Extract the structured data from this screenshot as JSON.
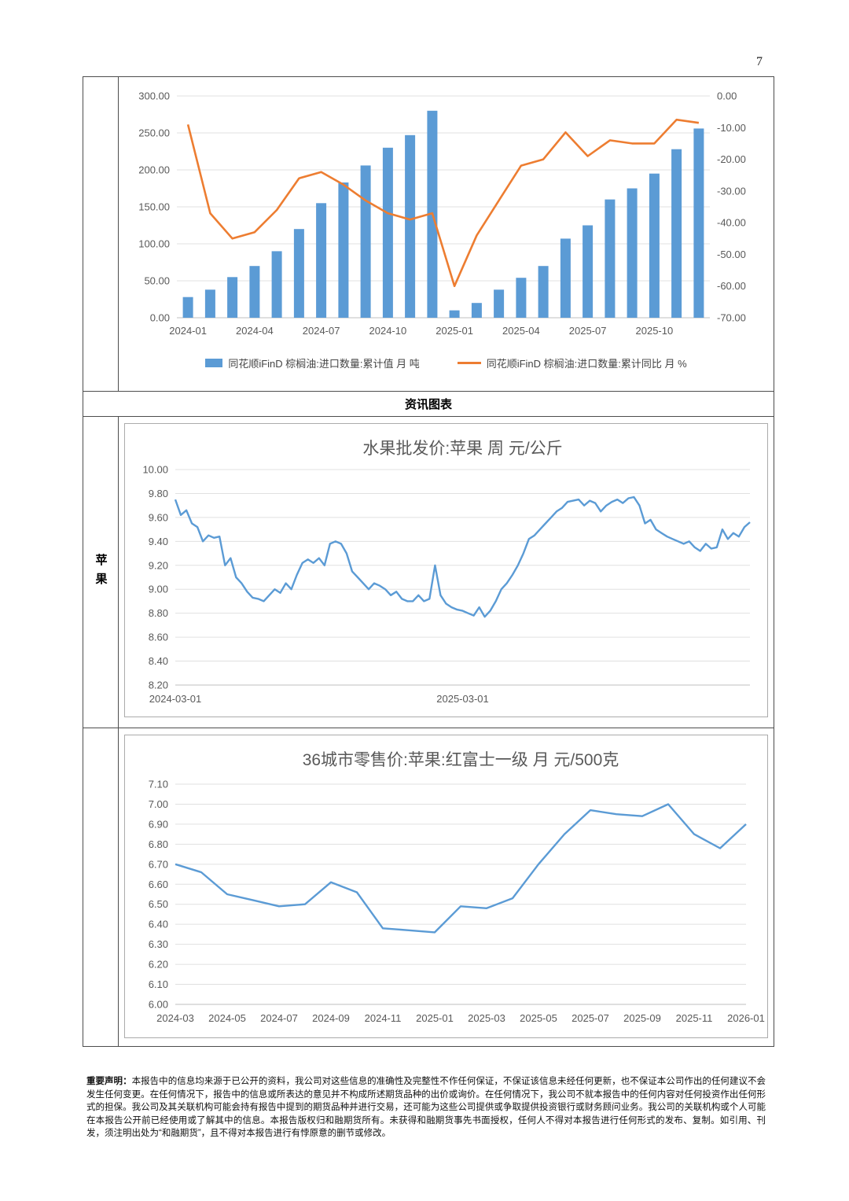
{
  "page_number": "7",
  "section_header": "资讯图表",
  "sidebar_label": "苹果",
  "footer": {
    "notice_label": "重要声明：",
    "notice_text": "本报告中的信息均来源于已公开的资料，我公司对这些信息的准确性及完整性不作任何保证，不保证该信息未经任何更新，也不保证本公司作出的任何建议不会发生任何变更。在任何情况下，报告中的信息或所表达的意见并不构成所述期货品种的出价或询价。在任何情况下，我公司不就本报告中的任何内容对任何投资作出任何形式的担保。我公司及其关联机构可能会持有报告中提到的期货品种并进行交易，还可能为这些公司提供或争取提供投资银行或财务顾问业务。我公司的关联机构或个人可能在本报告公开前已经使用或了解其中的信息。本报告版权归和融期货所有。未获得和融期货事先书面授权，任何人不得对本报告进行任何形式的发布、复制。如引用、刊发，须注明出处为“和融期货”，且不得对本报告进行有悖原意的删节或修改。"
  },
  "chart_data": [
    {
      "type": "bar",
      "subtype": "combo-bar-line",
      "title": "",
      "categories": [
        "2024-01",
        "2024-02",
        "2024-03",
        "2024-04",
        "2024-05",
        "2024-06",
        "2024-07",
        "2024-08",
        "2024-09",
        "2024-10",
        "2024-11",
        "2024-12",
        "2025-01",
        "2025-02",
        "2025-03",
        "2025-04",
        "2025-05",
        "2025-06",
        "2025-07",
        "2025-08",
        "2025-09",
        "2025-10",
        "2025-11",
        "2025-12"
      ],
      "series": [
        {
          "name": "同花顺iFinD 棕榈油:进口数量:累计值 月 吨",
          "type": "bar",
          "axis": "left",
          "color": "#5B9BD5",
          "values": [
            28,
            38,
            55,
            70,
            90,
            120,
            155,
            183,
            206,
            230,
            247,
            280,
            10,
            20,
            38,
            54,
            70,
            107,
            125,
            160,
            175,
            195,
            228,
            256
          ]
        },
        {
          "name": "同花顺iFinD 棕榈油:进口数量:累计同比 月 %",
          "type": "line",
          "axis": "right",
          "color": "#ED7D31",
          "values": [
            -9,
            -37,
            -45,
            -43,
            -36,
            -26,
            -24,
            -28,
            -33,
            -37,
            -39,
            -37,
            -60,
            -44,
            -33,
            -22,
            -20,
            -11.5,
            -19,
            -14,
            -15,
            -15,
            -7.5,
            -8.5
          ]
        }
      ],
      "left_axis": {
        "min": 0,
        "max": 300,
        "step": 50
      },
      "right_axis": {
        "min": -70,
        "max": 0,
        "step": 10
      },
      "x_tick_every": 3,
      "grid": true,
      "legend_position": "bottom"
    },
    {
      "type": "line",
      "title": "水果批发价:苹果 周 元/公斤",
      "color": "#5B9BD5",
      "y_axis": {
        "min": 8.2,
        "max": 10.0,
        "step": 0.2
      },
      "x_labels": [
        {
          "text": "2024-03-01",
          "pos": 0.0
        },
        {
          "text": "2025-03-01",
          "pos": 0.5
        }
      ],
      "grid": true,
      "legend_position": "none",
      "values": [
        9.75,
        9.62,
        9.66,
        9.55,
        9.52,
        9.4,
        9.45,
        9.43,
        9.44,
        9.2,
        9.26,
        9.1,
        9.05,
        8.98,
        8.93,
        8.92,
        8.9,
        8.95,
        9.0,
        8.97,
        9.05,
        9.0,
        9.12,
        9.22,
        9.25,
        9.22,
        9.26,
        9.2,
        9.38,
        9.4,
        9.38,
        9.3,
        9.15,
        9.1,
        9.05,
        9.0,
        9.05,
        9.03,
        9.0,
        8.95,
        8.98,
        8.92,
        8.9,
        8.9,
        8.95,
        8.9,
        8.92,
        9.2,
        8.95,
        8.88,
        8.85,
        8.83,
        8.82,
        8.8,
        8.78,
        8.85,
        8.77,
        8.82,
        8.9,
        9.0,
        9.05,
        9.12,
        9.2,
        9.3,
        9.42,
        9.45,
        9.5,
        9.55,
        9.6,
        9.65,
        9.68,
        9.73,
        9.74,
        9.75,
        9.7,
        9.74,
        9.72,
        9.65,
        9.7,
        9.73,
        9.75,
        9.72,
        9.76,
        9.77,
        9.7,
        9.55,
        9.58,
        9.5,
        9.47,
        9.44,
        9.42,
        9.4,
        9.38,
        9.4,
        9.35,
        9.32,
        9.38,
        9.34,
        9.35,
        9.5,
        9.42,
        9.47,
        9.44,
        9.52,
        9.56
      ]
    },
    {
      "type": "line",
      "title": "36城市零售价:苹果:红富士一级 月 元/500克",
      "color": "#5B9BD5",
      "y_axis": {
        "min": 6.0,
        "max": 7.1,
        "step": 0.1
      },
      "categories": [
        "2024-03",
        "2024-04",
        "2024-05",
        "2024-06",
        "2024-07",
        "2024-08",
        "2024-09",
        "2024-10",
        "2024-11",
        "2024-12",
        "2025-01",
        "2025-02",
        "2025-03",
        "2025-04",
        "2025-05",
        "2025-06",
        "2025-07",
        "2025-08",
        "2025-09",
        "2025-10",
        "2025-11",
        "2025-12",
        "2026-01"
      ],
      "x_tick_every": 2,
      "grid": true,
      "legend_position": "none",
      "values": [
        6.7,
        6.66,
        6.55,
        6.52,
        6.49,
        6.5,
        6.61,
        6.56,
        6.38,
        6.37,
        6.36,
        6.49,
        6.48,
        6.53,
        6.7,
        6.85,
        6.97,
        6.95,
        6.94,
        7.0,
        6.85,
        6.78,
        6.9
      ]
    }
  ]
}
